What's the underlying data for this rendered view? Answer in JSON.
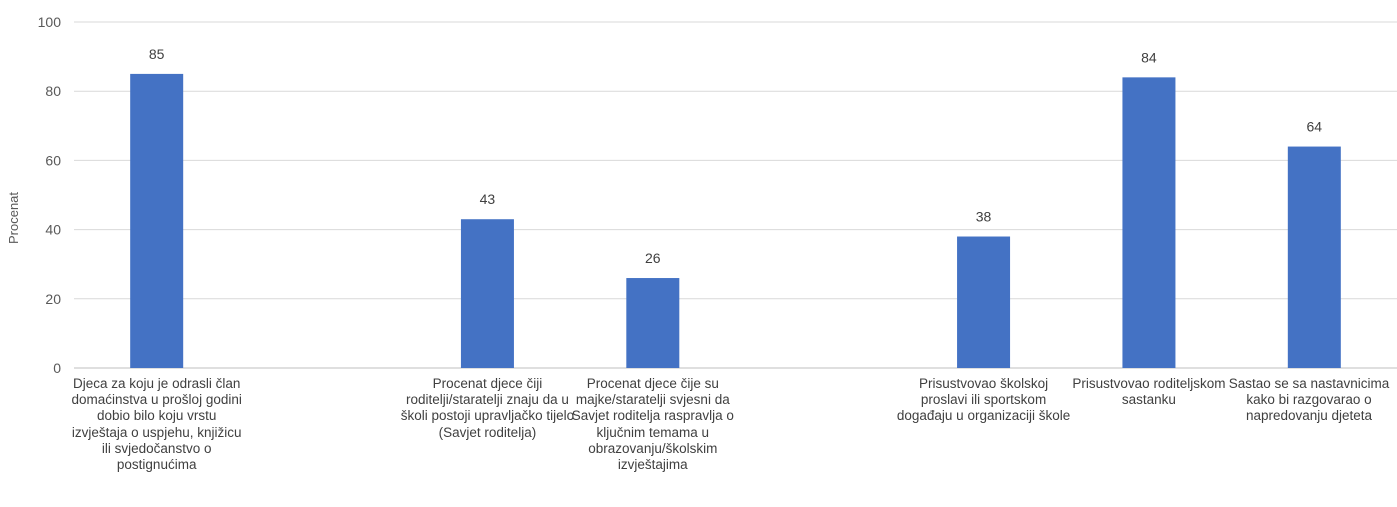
{
  "chart_data": {
    "type": "bar",
    "ylabel": "Procenat",
    "ylim": [
      0,
      100
    ],
    "yticks": [
      0,
      20,
      40,
      60,
      80,
      100
    ],
    "grid": true,
    "bar_color": "#4472C4",
    "categories": [
      "Djeca za koju je odrasli član domaćinstva u prošloj godini dobio bilo koju vrstu izvještaja o uspjehu, knjižicu ili svjedočanstvo o postignućima",
      "",
      "Procenat djece čiji roditelji/staratelji znaju da u školi postoji upravljačko tijelo (Savjet roditelja)",
      "Procenat djece čije su majke/staratelji svjesni da Savjet roditelja raspravlja o ključnim temama u obrazovanju/školskim izvještajima",
      "",
      "Prisustvovao školskoj proslavi ili sportskom događaju u organizaciji škole",
      "Prisustvovao roditeljskom sastanku",
      "Sastao se sa nastavnicima kako bi razgovarao o napredovanju djeteta"
    ],
    "values": [
      85,
      null,
      43,
      26,
      null,
      38,
      84,
      64
    ],
    "data_labels": [
      "85",
      "",
      "43",
      "26",
      "",
      "38",
      "84",
      "64"
    ]
  }
}
